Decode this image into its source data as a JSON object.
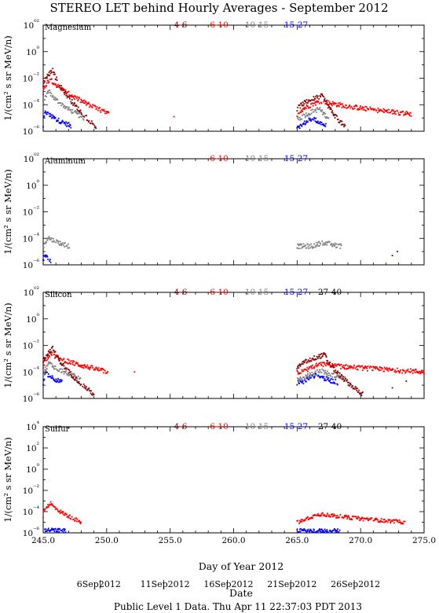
{
  "page": {
    "title": "STEREO LET behind Hourly Averages - September 2012",
    "ylabel": "1/(cm² s sr MeV/n)",
    "xlabel": "Day of Year 2012",
    "date_axis_label": "Date",
    "footer": "Public Level 1 Data. Thu Apr 11 22:37:03 PDT 2013"
  },
  "colors": {
    "4-6": "#8b0000",
    "6-10": "#ff0000",
    "10-15": "#808080",
    "15-27": "#0000ff",
    "27-40": "#000000"
  },
  "chart_data": [
    {
      "type": "scatter",
      "title": "Magnesium",
      "legend": [
        "4-6",
        "6-10",
        "10-15",
        "15-27"
      ],
      "ytick_labels": [
        "10⁰²",
        "10⁰",
        "10⁻²",
        "10⁻⁴",
        "10⁻⁶"
      ],
      "ylim_exp": [
        -6,
        2
      ],
      "xlim": [
        245.0,
        275.0
      ],
      "xtick_labels": [
        "245.0",
        "250.0",
        "255.0",
        "260.0",
        "265.0",
        "270.0",
        "275.0"
      ],
      "series": [
        {
          "name": "4-6",
          "peaks": [
            [
              245.8,
              -1.4
            ],
            [
              267.1,
              -3.3
            ]
          ],
          "ranges": [
            [
              245.0,
              249.2
            ],
            [
              265.0,
              268.8
            ]
          ]
        },
        {
          "name": "6-10",
          "peaks": [
            [
              245.6,
              -2.0
            ],
            [
              267.0,
              -3.7
            ]
          ],
          "ranges": [
            [
              245.0,
              250.2
            ],
            [
              265.0,
              274.0
            ]
          ],
          "floor": -4.7,
          "isolated": [
            [
              255.3,
              -4.9
            ]
          ]
        },
        {
          "name": "10-15",
          "peaks": [
            [
              245.5,
              -3.0
            ],
            [
              266.8,
              -4.3
            ]
          ],
          "ranges": [
            [
              245.0,
              248.2
            ],
            [
              265.0,
              267.5
            ]
          ],
          "floor": -5.0
        },
        {
          "name": "15-27",
          "peaks": [
            [
              245.2,
              -4.5
            ],
            [
              266.3,
              -5.0
            ]
          ],
          "ranges": [
            [
              245.0,
              247.2
            ],
            [
              265.0,
              267.3
            ]
          ],
          "floor": -5.6
        }
      ]
    },
    {
      "type": "scatter",
      "title": "Aluminum",
      "legend": [
        "6-10",
        "10-15",
        "15-27"
      ],
      "ylim_exp": [
        -6,
        2
      ],
      "xlim": [
        245.0,
        275.0
      ],
      "series": [
        {
          "name": "10-15",
          "peaks": [
            [
              245.4,
              -3.9
            ],
            [
              267.1,
              -4.3
            ]
          ],
          "ranges": [
            [
              245.0,
              247.1
            ],
            [
              265.0,
              268.5
            ]
          ],
          "floor": -4.6
        },
        {
          "name": "15-27",
          "peaks": [
            [
              245.1,
              -5.2
            ]
          ],
          "ranges": [
            [
              245.0,
              245.6
            ]
          ],
          "isolated": [
            [
              272.5,
              -5.3
            ],
            [
              272.9,
              -5.0
            ]
          ]
        }
      ]
    },
    {
      "type": "scatter",
      "title": "Silicon",
      "legend": [
        "4-6",
        "6-10",
        "10-15",
        "15-27",
        "27-40"
      ],
      "ylim_exp": [
        -6,
        2
      ],
      "xlim": [
        245.0,
        275.0
      ],
      "series": [
        {
          "name": "4-6",
          "peaks": [
            [
              245.8,
              -2.2
            ],
            [
              267.2,
              -2.7
            ]
          ],
          "ranges": [
            [
              245.0,
              249.0
            ],
            [
              265.0,
              270.2
            ]
          ]
        },
        {
          "name": "6-10",
          "peaks": [
            [
              245.6,
              -2.6
            ],
            [
              266.9,
              -3.4
            ]
          ],
          "ranges": [
            [
              245.0,
              250.1
            ],
            [
              265.0,
              275.0
            ]
          ],
          "floor": -4.0,
          "isolated": [
            [
              252.2,
              -4.0
            ]
          ]
        },
        {
          "name": "10-15",
          "peaks": [
            [
              245.5,
              -3.3
            ],
            [
              267.0,
              -3.9
            ]
          ],
          "ranges": [
            [
              245.0,
              248.0
            ],
            [
              265.0,
              268.8
            ]
          ],
          "floor": -4.5
        },
        {
          "name": "15-27",
          "peaks": [
            [
              245.2,
              -4.0
            ],
            [
              266.6,
              -4.2
            ]
          ],
          "ranges": [
            [
              245.0,
              246.5
            ],
            [
              265.0,
              268.2
            ]
          ],
          "floor": -4.8,
          "isolated": [
            [
              272.5,
              -5.2
            ],
            [
              273.6,
              -4.7
            ]
          ]
        }
      ]
    },
    {
      "type": "scatter",
      "title": "Sulfur",
      "legend": [
        "4-6",
        "6-10",
        "10-15",
        "15-27",
        "27-40"
      ],
      "ytick_labels": [
        "10⁴",
        "10²",
        "10⁰",
        "10⁻²",
        "10⁻⁴",
        "10⁻⁶"
      ],
      "ylim_exp": [
        -6,
        4
      ],
      "xlim": [
        245.0,
        275.0
      ],
      "series": [
        {
          "name": "6-10",
          "peaks": [
            [
              245.6,
              -3.2
            ],
            [
              267.0,
              -4.2
            ]
          ],
          "ranges": [
            [
              245.0,
              248.0
            ],
            [
              265.0,
              273.5
            ]
          ],
          "floor": -5.0
        },
        {
          "name": "15-27",
          "peaks": [
            [
              245.2,
              -5.7
            ],
            [
              266.0,
              -5.8
            ]
          ],
          "ranges": [
            [
              245.0,
              246.8
            ],
            [
              265.0,
              268.4
            ]
          ],
          "floor": -5.8
        }
      ]
    }
  ],
  "date_ticks": [
    "6Sep2012",
    "11Sep2012",
    "16Sep2012",
    "21Sep2012",
    "26Sep2012"
  ]
}
